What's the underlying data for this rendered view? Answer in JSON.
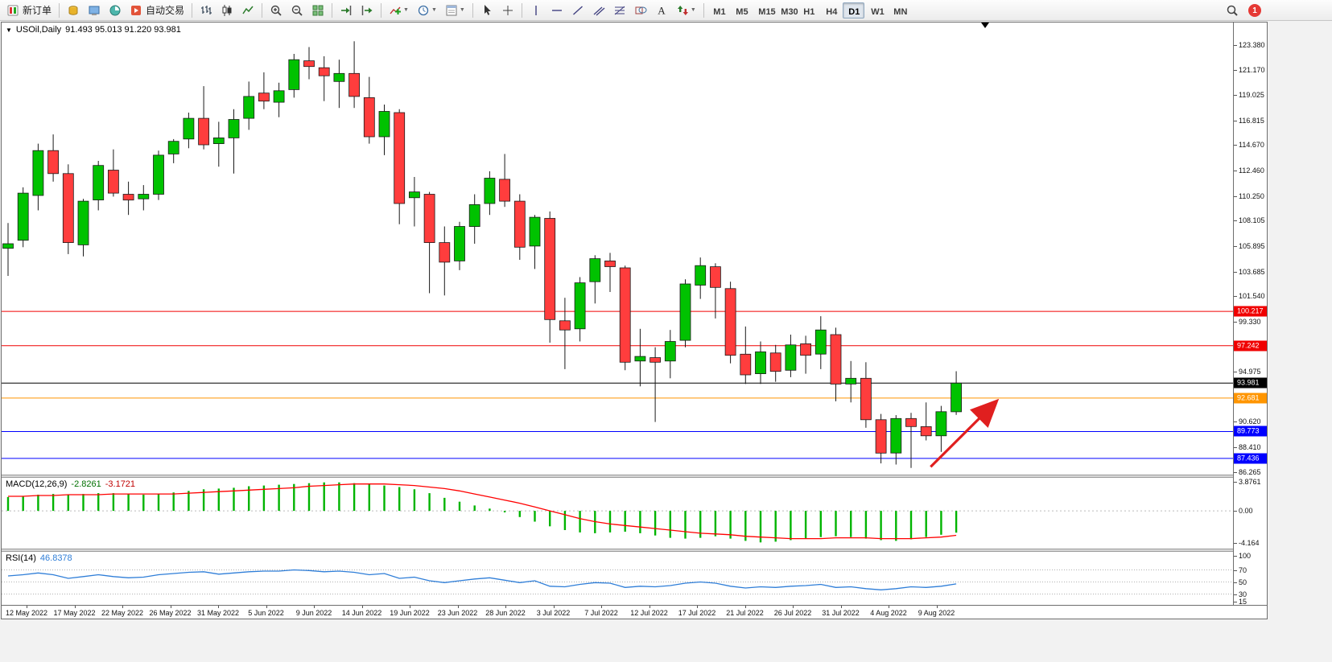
{
  "toolbar": {
    "notification_count": "1",
    "active_timeframe": "D1",
    "timeframes": [
      "M1",
      "M5",
      "M15",
      "M30",
      "H1",
      "H4",
      "D1",
      "W1",
      "MN"
    ],
    "buttons": [
      {
        "name": "new-order-button",
        "icon": "new-order-icon",
        "label": "新订单"
      },
      {
        "sep": true
      },
      {
        "name": "market-watch-button",
        "icon": "market-watch-icon"
      },
      {
        "name": "navigator-button",
        "icon": "navigator-icon"
      },
      {
        "name": "terminal-button",
        "icon": "terminal-icon"
      },
      {
        "name": "auto-trading-button",
        "icon": "auto-trading-icon",
        "label": "自动交易"
      },
      {
        "sep": true
      },
      {
        "name": "bar-chart-button",
        "icon": "bar-chart-icon"
      },
      {
        "name": "candlestick-chart-button",
        "icon": "candlestick-icon"
      },
      {
        "name": "line-chart-button",
        "icon": "line-chart-icon"
      },
      {
        "sep": true
      },
      {
        "name": "zoom-in-button",
        "icon": "zoom-in-icon"
      },
      {
        "name": "zoom-out-button",
        "icon": "zoom-out-icon"
      },
      {
        "name": "tile-windows-button",
        "icon": "tile-windows-icon"
      },
      {
        "sep": true
      },
      {
        "name": "auto-scroll-button",
        "icon": "auto-scroll-icon"
      },
      {
        "name": "chart-shift-button",
        "icon": "chart-shift-icon"
      },
      {
        "sep": true
      },
      {
        "name": "indicators-button",
        "icon": "indicators-icon",
        "dropdown": true
      },
      {
        "name": "periods-button",
        "icon": "clock-icon",
        "dropdown": true
      },
      {
        "name": "templates-button",
        "icon": "template-icon",
        "dropdown": true
      },
      {
        "sep": true
      },
      {
        "name": "cursor-button",
        "icon": "cursor-icon"
      },
      {
        "name": "crosshair-button",
        "icon": "crosshair-icon"
      },
      {
        "sep": true
      },
      {
        "name": "vertical-line-button",
        "icon": "vertical-line-icon"
      },
      {
        "name": "horizontal-line-button",
        "icon": "horizontal-line-icon"
      },
      {
        "name": "trendline-button",
        "icon": "trendline-icon"
      },
      {
        "name": "channel-button",
        "icon": "channel-icon"
      },
      {
        "name": "fibonacci-button",
        "icon": "fibonacci-icon"
      },
      {
        "name": "shapes-button",
        "icon": "shapes-icon"
      },
      {
        "name": "text-button",
        "icon": "text-icon"
      },
      {
        "name": "arrows-button",
        "icon": "arrows-icon",
        "dropdown": true
      },
      {
        "sep": true
      }
    ]
  },
  "chart_data": {
    "type": "candlestick",
    "title": "USOil,Daily",
    "ohlc_display": "91.493 95.013 91.220 93.981",
    "y_axis_ticks": [
      "123.380",
      "121.170",
      "119.025",
      "116.815",
      "114.670",
      "112.460",
      "110.250",
      "108.105",
      "105.895",
      "103.685",
      "101.540",
      "99.330",
      "94.975",
      "90.620",
      "88.410",
      "86.265"
    ],
    "y_range": [
      86.03,
      125.33
    ],
    "x_axis_labels": [
      "12 May 2022",
      "17 May 2022",
      "22 May 2022",
      "26 May 2022",
      "31 May 2022",
      "5 Jun 2022",
      "9 Jun 2022",
      "14 Jun 2022",
      "19 Jun 2022",
      "23 Jun 2022",
      "28 Jun 2022",
      "3 Jul 2022",
      "7 Jul 2022",
      "12 Jul 2022",
      "17 Jul 2022",
      "21 Jul 2022",
      "26 Jul 2022",
      "31 Jul 2022",
      "4 Aug 2022",
      "9 Aug 2022"
    ],
    "horizontal_lines": [
      {
        "label": "100.217",
        "value": 100.217,
        "color": "#f00000"
      },
      {
        "label": "97.242",
        "value": 97.242,
        "color": "#f00000"
      },
      {
        "label": "93.981",
        "value": 93.981,
        "color": "#000000"
      },
      {
        "label": "92.681",
        "value": 92.681,
        "color": "#ff9500"
      },
      {
        "label": "89.773",
        "value": 89.773,
        "color": "#0000ff"
      },
      {
        "label": "87.436",
        "value": 87.436,
        "color": "#0000ff"
      }
    ],
    "candle_colors": {
      "bull": "#00c200",
      "bear": "#ff3d3d",
      "outline": "#1a1a1a"
    },
    "candles": [
      [
        105.7,
        107.9,
        103.3,
        106.1
      ],
      [
        106.4,
        111.0,
        105.8,
        110.5
      ],
      [
        110.3,
        114.8,
        109.0,
        114.2
      ],
      [
        114.2,
        115.6,
        111.5,
        112.2
      ],
      [
        112.2,
        113.0,
        105.2,
        106.2
      ],
      [
        106.0,
        110.0,
        105.0,
        109.8
      ],
      [
        109.9,
        113.3,
        109.0,
        112.9
      ],
      [
        112.5,
        114.3,
        110.2,
        110.5
      ],
      [
        110.4,
        111.5,
        108.6,
        109.9
      ],
      [
        110.0,
        111.2,
        109.0,
        110.4
      ],
      [
        110.4,
        114.2,
        109.9,
        113.8
      ],
      [
        113.9,
        115.2,
        113.1,
        115.0
      ],
      [
        115.2,
        117.5,
        114.4,
        117.0
      ],
      [
        117.0,
        119.8,
        114.3,
        114.7
      ],
      [
        114.8,
        116.7,
        112.8,
        115.3
      ],
      [
        115.3,
        117.8,
        112.2,
        116.9
      ],
      [
        117.0,
        120.2,
        116.0,
        118.9
      ],
      [
        119.2,
        121.0,
        117.8,
        118.5
      ],
      [
        118.4,
        120.1,
        117.1,
        119.4
      ],
      [
        119.5,
        122.6,
        118.8,
        122.1
      ],
      [
        122.0,
        123.2,
        120.4,
        121.5
      ],
      [
        121.4,
        122.4,
        118.5,
        120.7
      ],
      [
        120.2,
        122.1,
        117.9,
        120.9
      ],
      [
        120.9,
        123.7,
        117.9,
        118.9
      ],
      [
        118.8,
        120.6,
        114.8,
        115.4
      ],
      [
        115.4,
        118.2,
        113.8,
        117.6
      ],
      [
        117.5,
        117.8,
        107.8,
        109.6
      ],
      [
        110.1,
        111.9,
        107.6,
        110.6
      ],
      [
        110.4,
        110.6,
        101.8,
        106.2
      ],
      [
        106.2,
        107.6,
        101.6,
        104.5
      ],
      [
        104.6,
        108.0,
        103.8,
        107.6
      ],
      [
        107.6,
        110.4,
        106.1,
        109.5
      ],
      [
        109.6,
        112.4,
        108.6,
        111.8
      ],
      [
        111.7,
        113.9,
        109.3,
        109.8
      ],
      [
        109.8,
        110.4,
        104.7,
        105.8
      ],
      [
        105.9,
        108.6,
        103.9,
        108.4
      ],
      [
        108.3,
        108.9,
        97.5,
        99.5
      ],
      [
        99.4,
        101.4,
        95.2,
        98.6
      ],
      [
        98.7,
        103.2,
        97.6,
        102.7
      ],
      [
        102.8,
        105.1,
        100.9,
        104.8
      ],
      [
        104.6,
        105.3,
        101.9,
        104.1
      ],
      [
        104.0,
        104.2,
        95.1,
        95.8
      ],
      [
        95.9,
        98.7,
        93.7,
        96.3
      ],
      [
        96.2,
        97.1,
        90.6,
        95.8
      ],
      [
        95.9,
        98.6,
        94.4,
        97.6
      ],
      [
        97.7,
        103.0,
        97.1,
        102.6
      ],
      [
        102.5,
        104.9,
        101.3,
        104.2
      ],
      [
        104.1,
        104.4,
        99.6,
        102.3
      ],
      [
        102.2,
        102.8,
        95.7,
        96.4
      ],
      [
        96.5,
        98.9,
        93.9,
        94.7
      ],
      [
        94.8,
        97.6,
        93.9,
        96.7
      ],
      [
        96.6,
        97.3,
        94.1,
        95.0
      ],
      [
        95.1,
        98.2,
        94.5,
        97.3
      ],
      [
        97.4,
        98.1,
        94.8,
        96.4
      ],
      [
        96.5,
        99.8,
        95.2,
        98.6
      ],
      [
        98.2,
        98.8,
        92.4,
        93.9
      ],
      [
        93.9,
        95.9,
        92.3,
        94.4
      ],
      [
        94.4,
        95.8,
        90.1,
        90.8
      ],
      [
        90.8,
        91.3,
        87.0,
        87.9
      ],
      [
        87.9,
        91.2,
        86.9,
        90.9
      ],
      [
        90.9,
        91.4,
        86.6,
        90.2
      ],
      [
        90.2,
        92.3,
        89.0,
        89.4
      ],
      [
        89.4,
        92.0,
        88.0,
        91.5
      ],
      [
        91.493,
        95.013,
        91.22,
        93.981
      ]
    ],
    "trend_arrow": {
      "from_bar": 61.3,
      "from_price": 86.7,
      "to_bar": 65.6,
      "to_price": 92.3,
      "color": "#e01f1f"
    },
    "indicators": {
      "macd": {
        "label": "MACD(12,26,9)",
        "value_main": "-2.8261",
        "value_signal": "-3.1721",
        "scale_ticks": [
          "3.8761",
          "0.00",
          "-4.164"
        ],
        "y_range": [
          -4.9,
          4.3
        ],
        "colors": {
          "histogram": "#00b400",
          "signal": "#ff0000"
        },
        "histogram": [
          1.8,
          1.9,
          2.1,
          2.2,
          2.1,
          2.2,
          2.3,
          2.3,
          2.2,
          2.1,
          2.2,
          2.4,
          2.6,
          2.8,
          2.9,
          3.0,
          3.2,
          3.3,
          3.4,
          3.5,
          3.6,
          3.7,
          3.7,
          3.6,
          3.5,
          3.3,
          3.1,
          2.8,
          2.3,
          1.7,
          1.2,
          0.7,
          0.3,
          -0.2,
          -0.8,
          -1.4,
          -2.0,
          -2.5,
          -2.8,
          -2.9,
          -2.8,
          -2.7,
          -2.9,
          -3.2,
          -3.5,
          -3.6,
          -3.5,
          -3.3,
          -3.6,
          -3.9,
          -4.1,
          -4.0,
          -3.8,
          -3.6,
          -3.4,
          -3.3,
          -3.4,
          -3.6,
          -3.8,
          -3.9,
          -3.7,
          -3.4,
          -3.1,
          -2.83
        ],
        "signal": [
          1.9,
          1.9,
          2.0,
          2.0,
          2.1,
          2.1,
          2.1,
          2.2,
          2.2,
          2.2,
          2.2,
          2.2,
          2.3,
          2.4,
          2.5,
          2.6,
          2.7,
          2.8,
          2.9,
          3.0,
          3.2,
          3.3,
          3.4,
          3.5,
          3.5,
          3.5,
          3.4,
          3.3,
          3.1,
          2.9,
          2.6,
          2.2,
          1.8,
          1.4,
          1.0,
          0.5,
          0.0,
          -0.5,
          -1.0,
          -1.4,
          -1.7,
          -1.9,
          -2.1,
          -2.3,
          -2.5,
          -2.7,
          -2.9,
          -3.0,
          -3.1,
          -3.3,
          -3.4,
          -3.5,
          -3.6,
          -3.6,
          -3.6,
          -3.5,
          -3.5,
          -3.5,
          -3.6,
          -3.6,
          -3.6,
          -3.5,
          -3.4,
          -3.17
        ]
      },
      "rsi": {
        "label": "RSI(14)",
        "value_display": "46.8378",
        "levels": [
          70,
          50,
          30
        ],
        "scale_ticks": [
          "100",
          "70",
          "50",
          "30",
          "15"
        ],
        "y_range": [
          12,
          100
        ],
        "color": "#2f7ed8",
        "values": [
          60,
          62,
          65,
          62,
          56,
          59,
          62,
          59,
          57,
          58,
          62,
          64,
          66,
          67,
          63,
          65,
          67,
          68,
          68,
          70,
          69,
          67,
          68,
          66,
          62,
          64,
          56,
          58,
          52,
          49,
          52,
          55,
          57,
          53,
          49,
          52,
          43,
          42,
          46,
          49,
          48,
          41,
          43,
          42,
          44,
          48,
          50,
          48,
          43,
          40,
          42,
          41,
          43,
          44,
          46,
          41,
          42,
          39,
          37,
          39,
          42,
          41,
          43,
          46.84
        ]
      }
    }
  }
}
